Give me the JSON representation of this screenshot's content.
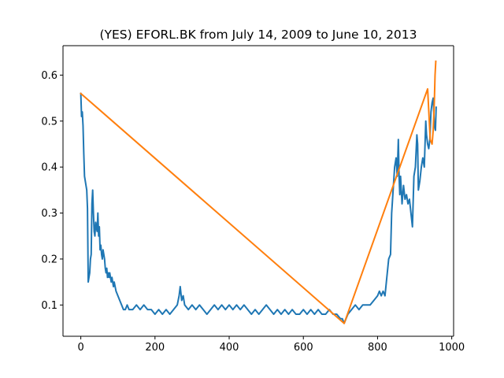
{
  "chart_data": {
    "type": "line",
    "title": "(YES) EFORL.BK from July 14, 2009 to June 10, 2013",
    "xlabel": "",
    "ylabel": "",
    "xlim": [
      -48,
      1005
    ],
    "ylim": [
      0.032,
      0.664
    ],
    "x_ticks": [
      0,
      200,
      400,
      600,
      800,
      1000
    ],
    "x_tick_labels": [
      "0",
      "200",
      "400",
      "600",
      "800",
      "1000"
    ],
    "y_ticks": [
      0.1,
      0.2,
      0.3,
      0.4,
      0.5,
      0.6
    ],
    "y_tick_labels": [
      "0.1",
      "0.2",
      "0.3",
      "0.4",
      "0.5",
      "0.6"
    ],
    "grid": false,
    "legend": "none",
    "series": [
      {
        "color": "#1f77b4",
        "x": [
          0,
          2,
          4,
          6,
          8,
          10,
          12,
          14,
          16,
          18,
          20,
          22,
          24,
          26,
          28,
          30,
          32,
          34,
          36,
          38,
          40,
          42,
          44,
          46,
          48,
          50,
          52,
          54,
          56,
          58,
          60,
          62,
          64,
          66,
          68,
          70,
          72,
          74,
          76,
          78,
          80,
          82,
          84,
          86,
          88,
          90,
          95,
          100,
          105,
          110,
          115,
          120,
          125,
          130,
          135,
          140,
          150,
          160,
          170,
          180,
          190,
          200,
          210,
          220,
          230,
          240,
          250,
          260,
          265,
          268,
          272,
          276,
          280,
          290,
          300,
          310,
          320,
          330,
          340,
          350,
          360,
          370,
          380,
          390,
          400,
          410,
          420,
          430,
          440,
          450,
          460,
          470,
          480,
          490,
          500,
          510,
          520,
          530,
          540,
          550,
          560,
          570,
          580,
          590,
          600,
          610,
          620,
          630,
          640,
          650,
          660,
          670,
          680,
          690,
          700,
          705,
          710,
          715,
          720,
          730,
          740,
          750,
          760,
          770,
          780,
          790,
          800,
          805,
          810,
          815,
          820,
          825,
          830,
          835,
          838,
          842,
          846,
          850,
          853,
          856,
          858,
          860,
          862,
          866,
          870,
          874,
          878,
          882,
          886,
          890,
          894,
          898,
          902,
          906,
          908,
          910,
          914,
          918,
          922,
          926,
          930,
          932,
          935,
          938,
          941,
          944,
          947,
          950,
          953,
          956,
          958
        ],
        "y": [
          0.56,
          0.51,
          0.52,
          0.49,
          0.43,
          0.38,
          0.37,
          0.36,
          0.35,
          0.31,
          0.15,
          0.16,
          0.17,
          0.2,
          0.21,
          0.32,
          0.35,
          0.3,
          0.26,
          0.25,
          0.28,
          0.27,
          0.26,
          0.3,
          0.25,
          0.27,
          0.22,
          0.23,
          0.21,
          0.2,
          0.22,
          0.21,
          0.2,
          0.18,
          0.17,
          0.18,
          0.16,
          0.17,
          0.16,
          0.17,
          0.16,
          0.15,
          0.16,
          0.15,
          0.14,
          0.15,
          0.13,
          0.12,
          0.11,
          0.1,
          0.09,
          0.09,
          0.1,
          0.09,
          0.09,
          0.09,
          0.1,
          0.09,
          0.1,
          0.09,
          0.09,
          0.08,
          0.09,
          0.08,
          0.09,
          0.08,
          0.09,
          0.1,
          0.12,
          0.14,
          0.11,
          0.12,
          0.1,
          0.09,
          0.1,
          0.09,
          0.1,
          0.09,
          0.08,
          0.09,
          0.1,
          0.09,
          0.1,
          0.09,
          0.1,
          0.09,
          0.1,
          0.09,
          0.1,
          0.09,
          0.08,
          0.09,
          0.08,
          0.09,
          0.1,
          0.09,
          0.08,
          0.09,
          0.08,
          0.09,
          0.08,
          0.09,
          0.08,
          0.08,
          0.09,
          0.08,
          0.09,
          0.08,
          0.09,
          0.08,
          0.08,
          0.09,
          0.08,
          0.08,
          0.07,
          0.07,
          0.06,
          0.07,
          0.08,
          0.09,
          0.1,
          0.09,
          0.1,
          0.1,
          0.1,
          0.11,
          0.12,
          0.13,
          0.12,
          0.13,
          0.12,
          0.16,
          0.2,
          0.21,
          0.3,
          0.35,
          0.4,
          0.42,
          0.38,
          0.46,
          0.38,
          0.34,
          0.38,
          0.32,
          0.36,
          0.33,
          0.34,
          0.32,
          0.33,
          0.3,
          0.27,
          0.38,
          0.4,
          0.47,
          0.45,
          0.35,
          0.37,
          0.4,
          0.42,
          0.4,
          0.5,
          0.47,
          0.45,
          0.44,
          0.46,
          0.52,
          0.54,
          0.55,
          0.49,
          0.48,
          0.53
        ]
      },
      {
        "color": "#ff7f0e",
        "x": [
          0,
          710,
          935,
          942,
          947,
          950,
          953,
          955,
          957
        ],
        "y": [
          0.56,
          0.06,
          0.57,
          0.46,
          0.45,
          0.48,
          0.54,
          0.6,
          0.63
        ]
      }
    ]
  }
}
